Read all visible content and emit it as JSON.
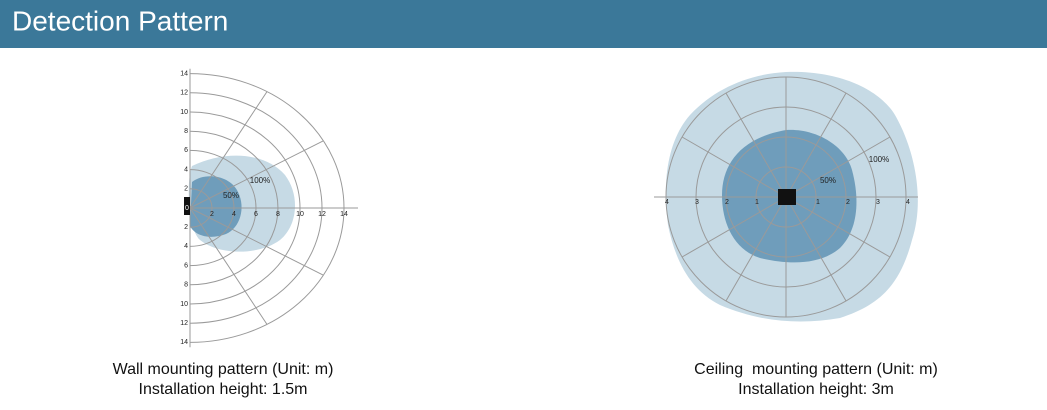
{
  "header": {
    "title": "Detection Pattern"
  },
  "wall": {
    "x_ticks": [
      "2",
      "4",
      "6",
      "8",
      "10",
      "12",
      "14"
    ],
    "y_ticks_upper": [
      "14",
      "12",
      "10",
      "8",
      "6",
      "4",
      "2"
    ],
    "origin": "0",
    "y_ticks_lower": [
      "2",
      "4",
      "6",
      "8",
      "10",
      "12",
      "14"
    ],
    "inner_label": "50%",
    "outer_label": "100%",
    "caption": [
      "Wall mounting pattern (Unit: m)",
      "Installation height: 1.5m"
    ]
  },
  "ceiling": {
    "x_ticks_left": [
      "4",
      "3",
      "2",
      "1"
    ],
    "x_ticks_right": [
      "1",
      "2",
      "3",
      "4"
    ],
    "inner_label": "50%",
    "outer_label": "100%",
    "caption": [
      "Ceiling  mounting pattern (Unit: m)",
      "Installation height: 3m"
    ]
  }
}
